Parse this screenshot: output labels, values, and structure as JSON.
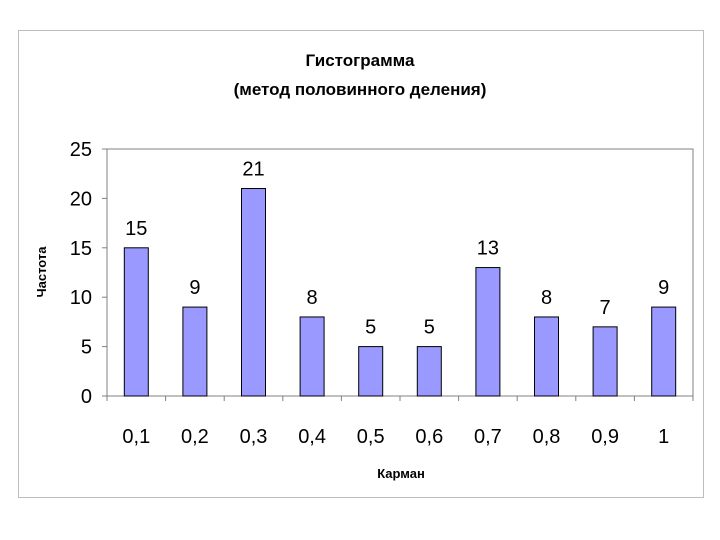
{
  "chart_data": {
    "type": "bar",
    "title": "Гистограмма",
    "subtitle": "(метод половинного деления)",
    "xlabel": "Карман",
    "ylabel": "Частота",
    "categories": [
      "0,1",
      "0,2",
      "0,3",
      "0,4",
      "0,5",
      "0,6",
      "0,7",
      "0,8",
      "0,9",
      "1"
    ],
    "values": [
      15,
      9,
      21,
      8,
      5,
      5,
      13,
      8,
      7,
      9
    ],
    "ylim": [
      0,
      25
    ],
    "yticks": [
      0,
      5,
      10,
      15,
      20,
      25
    ],
    "grid": false,
    "legend": "none",
    "bar_color": "#9999ff",
    "bar_edge_color": "#000000"
  }
}
